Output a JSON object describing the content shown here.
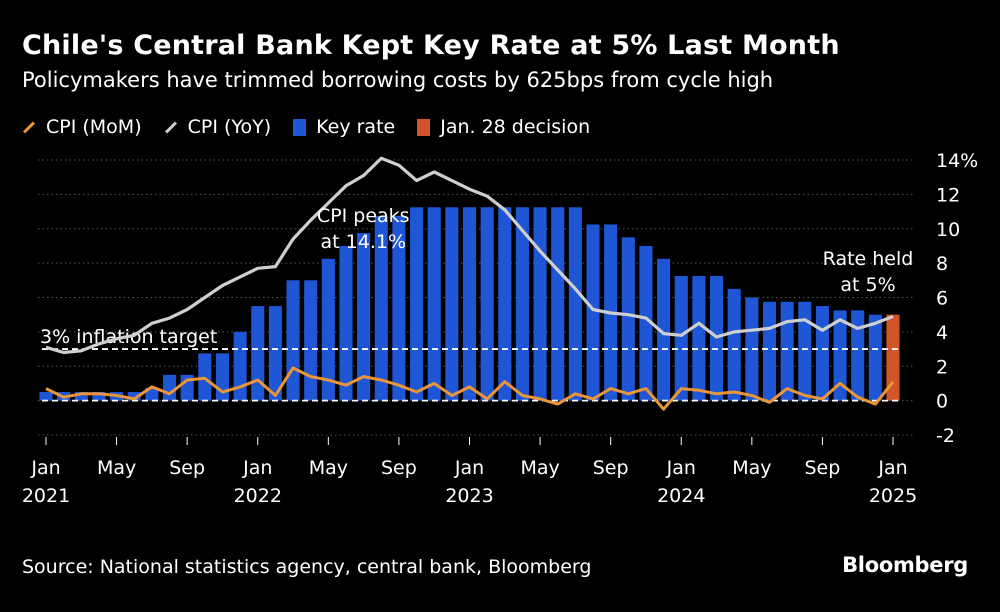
{
  "title": "Chile's Central Bank Kept Key Rate at 5% Last Month",
  "subtitle": "Policymakers have trimmed borrowing costs by 625bps from cycle high",
  "source": "Source: National statistics agency, central bank, Bloomberg",
  "logo": "Bloomberg",
  "colors": {
    "background": "#000000",
    "cpi_mom": "#e9953a",
    "cpi_yoy": "#cfcfcf",
    "key_rate": "#1f56d6",
    "decision": "#d2562b",
    "grid": "#555555"
  },
  "legend": [
    {
      "label": "CPI (MoM)",
      "kind": "line",
      "color": "#e9953a"
    },
    {
      "label": "CPI (YoY)",
      "kind": "line",
      "color": "#cfcfcf"
    },
    {
      "label": "Key rate",
      "kind": "box",
      "color": "#1f56d6"
    },
    {
      "label": "Jan. 28 decision",
      "kind": "box",
      "color": "#d2562b"
    }
  ],
  "chart_data": {
    "type": "bar",
    "title": "Chile's Central Bank Kept Key Rate at 5% Last Month",
    "months": [
      "2021-01",
      "2021-02",
      "2021-03",
      "2021-04",
      "2021-05",
      "2021-06",
      "2021-07",
      "2021-08",
      "2021-09",
      "2021-10",
      "2021-11",
      "2021-12",
      "2022-01",
      "2022-02",
      "2022-03",
      "2022-04",
      "2022-05",
      "2022-06",
      "2022-07",
      "2022-08",
      "2022-09",
      "2022-10",
      "2022-11",
      "2022-12",
      "2023-01",
      "2023-02",
      "2023-03",
      "2023-04",
      "2023-05",
      "2023-06",
      "2023-07",
      "2023-08",
      "2023-09",
      "2023-10",
      "2023-11",
      "2023-12",
      "2024-01",
      "2024-02",
      "2024-03",
      "2024-04",
      "2024-05",
      "2024-06",
      "2024-07",
      "2024-08",
      "2024-09",
      "2024-10",
      "2024-11",
      "2024-12",
      "2025-01"
    ],
    "x_ticks": [
      {
        "month": "2021-01",
        "label": "Jan",
        "year": "2021"
      },
      {
        "month": "2021-05",
        "label": "May",
        "year": ""
      },
      {
        "month": "2021-09",
        "label": "Sep",
        "year": ""
      },
      {
        "month": "2022-01",
        "label": "Jan",
        "year": "2022"
      },
      {
        "month": "2022-05",
        "label": "May",
        "year": ""
      },
      {
        "month": "2022-09",
        "label": "Sep",
        "year": ""
      },
      {
        "month": "2023-01",
        "label": "Jan",
        "year": "2023"
      },
      {
        "month": "2023-05",
        "label": "May",
        "year": ""
      },
      {
        "month": "2023-09",
        "label": "Sep",
        "year": ""
      },
      {
        "month": "2024-01",
        "label": "Jan",
        "year": "2024"
      },
      {
        "month": "2024-05",
        "label": "May",
        "year": ""
      },
      {
        "month": "2024-09",
        "label": "Sep",
        "year": ""
      },
      {
        "month": "2025-01",
        "label": "Jan",
        "year": "2025"
      }
    ],
    "y_ticks": [
      {
        "value": 14,
        "label": "14%"
      },
      {
        "value": 12,
        "label": "12"
      },
      {
        "value": 10,
        "label": "10"
      },
      {
        "value": 8,
        "label": "8"
      },
      {
        "value": 6,
        "label": "6"
      },
      {
        "value": 4,
        "label": "4"
      },
      {
        "value": 2,
        "label": "2"
      },
      {
        "value": 0,
        "label": "0"
      },
      {
        "value": -2,
        "label": "-2"
      }
    ],
    "ylim": [
      -2,
      14
    ],
    "grid": true,
    "legend_position": "top-left",
    "series": [
      {
        "name": "Key rate",
        "kind": "bar",
        "values": [
          0.5,
          0.5,
          0.5,
          0.5,
          0.5,
          0.5,
          0.75,
          1.5,
          1.5,
          2.75,
          2.75,
          4.0,
          5.5,
          5.5,
          7.0,
          7.0,
          8.25,
          9.0,
          9.75,
          10.75,
          10.75,
          11.25,
          11.25,
          11.25,
          11.25,
          11.25,
          11.25,
          11.25,
          11.25,
          11.25,
          11.25,
          10.25,
          10.25,
          9.5,
          9.0,
          8.25,
          7.25,
          7.25,
          7.25,
          6.5,
          6.0,
          5.75,
          5.75,
          5.75,
          5.5,
          5.25,
          5.25,
          5.0,
          5.0
        ]
      },
      {
        "name": "Jan. 28 decision",
        "kind": "bar",
        "values": [
          null,
          null,
          null,
          null,
          null,
          null,
          null,
          null,
          null,
          null,
          null,
          null,
          null,
          null,
          null,
          null,
          null,
          null,
          null,
          null,
          null,
          null,
          null,
          null,
          null,
          null,
          null,
          null,
          null,
          null,
          null,
          null,
          null,
          null,
          null,
          null,
          null,
          null,
          null,
          null,
          null,
          null,
          null,
          null,
          null,
          null,
          null,
          null,
          5.0
        ]
      },
      {
        "name": "CPI (YoY)",
        "kind": "line",
        "values": [
          3.1,
          2.8,
          2.9,
          3.3,
          3.6,
          3.8,
          4.5,
          4.8,
          5.3,
          6.0,
          6.7,
          7.2,
          7.7,
          7.8,
          9.4,
          10.5,
          11.5,
          12.5,
          13.1,
          14.1,
          13.7,
          12.8,
          13.3,
          12.8,
          12.3,
          11.9,
          11.1,
          9.9,
          8.7,
          7.6,
          6.5,
          5.3,
          5.1,
          5.0,
          4.8,
          3.9,
          3.8,
          4.5,
          3.7,
          4.0,
          4.1,
          4.2,
          4.6,
          4.7,
          4.1,
          4.7,
          4.2,
          4.5,
          4.9
        ]
      },
      {
        "name": "CPI (MoM)",
        "kind": "line",
        "values": [
          0.7,
          0.2,
          0.4,
          0.4,
          0.3,
          0.1,
          0.8,
          0.4,
          1.2,
          1.3,
          0.5,
          0.8,
          1.2,
          0.3,
          1.9,
          1.4,
          1.2,
          0.9,
          1.4,
          1.2,
          0.9,
          0.5,
          1.0,
          0.3,
          0.8,
          0.1,
          1.1,
          0.3,
          0.1,
          -0.2,
          0.4,
          0.1,
          0.7,
          0.4,
          0.7,
          -0.5,
          0.7,
          0.6,
          0.4,
          0.5,
          0.3,
          -0.1,
          0.7,
          0.3,
          0.1,
          1.0,
          0.2,
          -0.2,
          1.1
        ]
      }
    ],
    "reference_lines": [
      {
        "value": 3,
        "label": "3% inflation target"
      },
      {
        "value": 0,
        "label": ""
      }
    ],
    "annotations": [
      {
        "text_lines": [
          "CPI peaks",
          "at 14.1%"
        ],
        "near_month": "2022-08"
      },
      {
        "text_lines": [
          "Rate held",
          "at 5%"
        ],
        "near_month": "2025-01"
      }
    ]
  }
}
